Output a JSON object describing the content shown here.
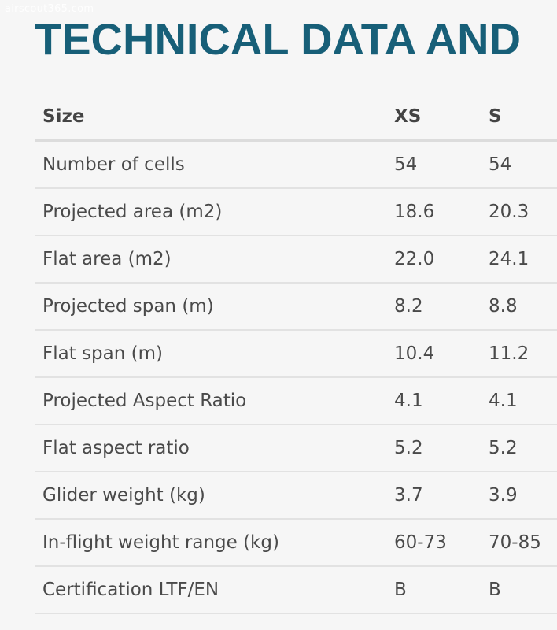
{
  "watermark": "airscout365.com",
  "title": "TECHNICAL DATA AND",
  "table": {
    "headers": [
      "Size",
      "XS",
      "S"
    ],
    "rows": [
      [
        "Number of cells",
        "54",
        "54"
      ],
      [
        "Projected area (m2)",
        "18.6",
        "20.3"
      ],
      [
        "Flat area (m2)",
        "22.0",
        "24.1"
      ],
      [
        "Projected span (m)",
        "8.2",
        "8.8"
      ],
      [
        "Flat span (m)",
        "10.4",
        "11.2"
      ],
      [
        "Projected Aspect Ratio",
        "4.1",
        "4.1"
      ],
      [
        "Flat aspect ratio",
        "5.2",
        "5.2"
      ],
      [
        "Glider weight (kg)",
        "3.7",
        "3.9"
      ],
      [
        "In-flight weight range (kg)",
        "60-73",
        "70-85"
      ],
      [
        "Certification LTF/EN",
        "B",
        "B"
      ]
    ]
  }
}
